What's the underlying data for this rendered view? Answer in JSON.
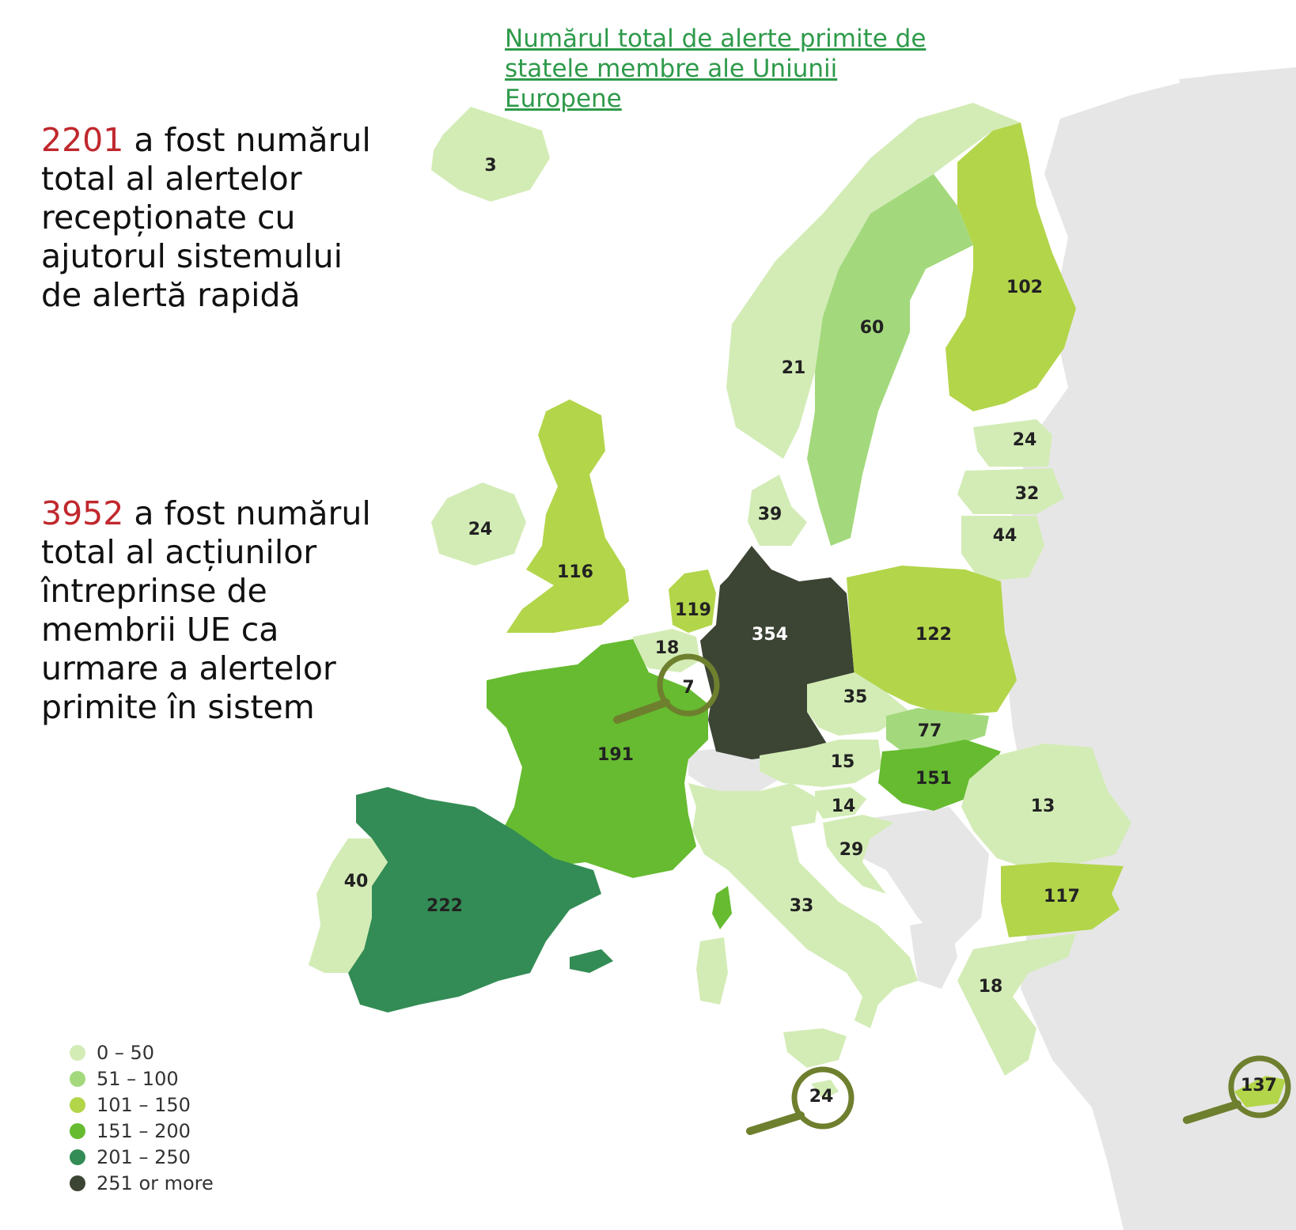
{
  "title": "Numărul total de alerte primite de statele membre ale Uniunii Europene",
  "stat_alerts": {
    "number": "2201",
    "text": " a fost numărul total al alertelor recepționate cu ajutorul sistemului de alertă rapidă"
  },
  "stat_actions": {
    "number": "3952",
    "text": " a fost numărul total al acțiunilor întreprinse de membrii UE ca urmare a alertelor primite în sistem"
  },
  "colors": {
    "range_0_50": "#d3ecb6",
    "range_51_100": "#a3d97c",
    "range_101_150": "#b3d54a",
    "range_151_200": "#66bb30",
    "range_201_250": "#338c55",
    "range_251_plus": "#3c4434",
    "non_eu": "#e6e6e6",
    "magnifier": "#6e7f2e",
    "title": "#2e9a4a",
    "highlight_number": "#c0282d"
  },
  "legend": [
    {
      "label": "0 – 50",
      "color": "#d3ecb6"
    },
    {
      "label": "51 – 100",
      "color": "#a3d97c"
    },
    {
      "label": "101 – 150",
      "color": "#b3d54a"
    },
    {
      "label": "151 – 200",
      "color": "#66bb30"
    },
    {
      "label": "201 – 250",
      "color": "#338c55"
    },
    {
      "label": "251 or more",
      "color": "#3c4434"
    }
  ],
  "countries": [
    {
      "id": "iceland",
      "value": "3"
    },
    {
      "id": "norway",
      "value": "21"
    },
    {
      "id": "sweden",
      "value": "60"
    },
    {
      "id": "finland",
      "value": "102"
    },
    {
      "id": "estonia",
      "value": "24"
    },
    {
      "id": "latvia",
      "value": "32"
    },
    {
      "id": "lithuania",
      "value": "44"
    },
    {
      "id": "denmark",
      "value": "39"
    },
    {
      "id": "ireland",
      "value": "24"
    },
    {
      "id": "united-kingdom",
      "value": "116"
    },
    {
      "id": "netherlands",
      "value": "119"
    },
    {
      "id": "belgium",
      "value": "18"
    },
    {
      "id": "luxembourg",
      "value": "7"
    },
    {
      "id": "germany",
      "value": "354"
    },
    {
      "id": "poland",
      "value": "122"
    },
    {
      "id": "czechia",
      "value": "35"
    },
    {
      "id": "slovakia",
      "value": "77"
    },
    {
      "id": "austria",
      "value": "15"
    },
    {
      "id": "hungary",
      "value": "151"
    },
    {
      "id": "slovenia",
      "value": "14"
    },
    {
      "id": "croatia",
      "value": "29"
    },
    {
      "id": "romania",
      "value": "13"
    },
    {
      "id": "bulgaria",
      "value": "117"
    },
    {
      "id": "greece",
      "value": "18"
    },
    {
      "id": "france",
      "value": "191"
    },
    {
      "id": "spain",
      "value": "222"
    },
    {
      "id": "portugal",
      "value": "40"
    },
    {
      "id": "italy",
      "value": "33"
    },
    {
      "id": "malta",
      "value": "24"
    },
    {
      "id": "cyprus",
      "value": "137"
    }
  ]
}
